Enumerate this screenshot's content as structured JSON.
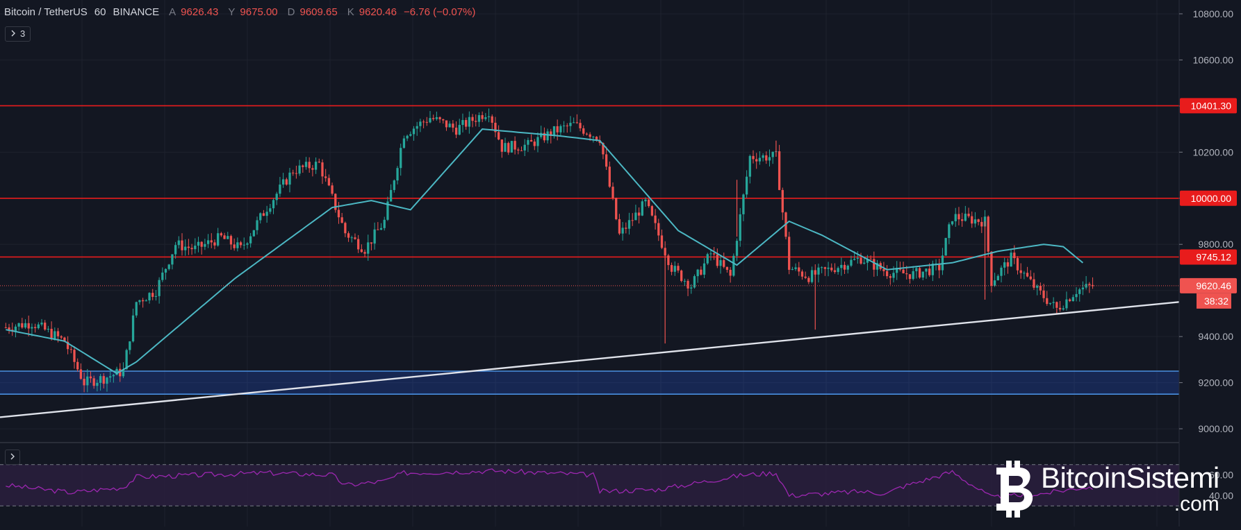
{
  "header": {
    "symbol": "Bitcoin / TetherUS",
    "interval": "60",
    "exchange": "BINANCE",
    "open_key": "A",
    "open": "9626.43",
    "high_key": "Y",
    "high": "9675.00",
    "low_key": "D",
    "low": "9609.65",
    "close_key": "K",
    "close": "9620.46",
    "change": "−6.76 (−0.07%)"
  },
  "indicator_toggle": {
    "icon": "chevron-right-icon",
    "count": "3"
  },
  "watermark": {
    "name": "BitcoinSistemi",
    "sub": ".com"
  },
  "colors": {
    "background": "#131722",
    "grid": "#1e222d",
    "up": "#26a69a",
    "down": "#ef5350",
    "ma": "#4cb8c4",
    "resistance": "#e81c1c",
    "support_zone": "#2962ff",
    "trendline": "#e0e3eb",
    "rsi": "#9c27b0",
    "rsi_band": "#2a1e3d"
  },
  "price_labels": [
    {
      "value": "10401.30",
      "color": "#e81c1c"
    },
    {
      "value": "10000.00",
      "color": "#e81c1c"
    },
    {
      "value": "9745.12",
      "color": "#e81c1c"
    },
    {
      "value": "9620.46",
      "color": "#ef5350",
      "countdown": "38:32"
    }
  ],
  "chart_data": {
    "type": "candlestick",
    "y_axis": {
      "ticks": [
        10800,
        10600,
        10400,
        10200,
        10000,
        9800,
        9600,
        9400,
        9200,
        9000
      ],
      "tick_labels": [
        "10800.00",
        "10600.00",
        "10400.00",
        "10200.00",
        "10000.00",
        "9800.00",
        "9400.00",
        "9200.00",
        "9000.00"
      ],
      "ylim": [
        8940,
        10860
      ]
    },
    "bars": 360,
    "anchors_close": [
      [
        0,
        9440
      ],
      [
        8,
        9460
      ],
      [
        18,
        9380
      ],
      [
        24,
        9200
      ],
      [
        30,
        9220
      ],
      [
        36,
        9250
      ],
      [
        40,
        9550
      ],
      [
        46,
        9600
      ],
      [
        52,
        9800
      ],
      [
        58,
        9780
      ],
      [
        66,
        9830
      ],
      [
        72,
        9780
      ],
      [
        80,
        9960
      ],
      [
        88,
        10120
      ],
      [
        96,
        10150
      ],
      [
        104,
        9850
      ],
      [
        110,
        9780
      ],
      [
        116,
        9900
      ],
      [
        122,
        10280
      ],
      [
        130,
        10350
      ],
      [
        138,
        10300
      ],
      [
        148,
        10380
      ],
      [
        152,
        10220
      ],
      [
        160,
        10230
      ],
      [
        168,
        10290
      ],
      [
        174,
        10320
      ],
      [
        182,
        10260
      ],
      [
        188,
        9840
      ],
      [
        196,
        9980
      ],
      [
        204,
        9700
      ],
      [
        210,
        9620
      ],
      [
        216,
        9760
      ],
      [
        222,
        9660
      ],
      [
        228,
        10180
      ],
      [
        236,
        10180
      ],
      [
        240,
        9700
      ],
      [
        246,
        9660
      ],
      [
        254,
        9700
      ],
      [
        262,
        9740
      ],
      [
        270,
        9680
      ],
      [
        278,
        9670
      ],
      [
        286,
        9700
      ],
      [
        290,
        9920
      ],
      [
        300,
        9900
      ],
      [
        302,
        9640
      ],
      [
        308,
        9740
      ],
      [
        316,
        9600
      ],
      [
        322,
        9520
      ],
      [
        328,
        9600
      ],
      [
        333,
        9620
      ]
    ],
    "moving_average": [
      [
        0,
        9430
      ],
      [
        18,
        9380
      ],
      [
        34,
        9240
      ],
      [
        40,
        9290
      ],
      [
        70,
        9650
      ],
      [
        100,
        9960
      ],
      [
        112,
        9990
      ],
      [
        124,
        9950
      ],
      [
        146,
        10300
      ],
      [
        170,
        10270
      ],
      [
        182,
        10250
      ],
      [
        206,
        9860
      ],
      [
        224,
        9710
      ],
      [
        240,
        9900
      ],
      [
        250,
        9840
      ],
      [
        270,
        9690
      ],
      [
        290,
        9720
      ],
      [
        304,
        9770
      ],
      [
        318,
        9800
      ],
      [
        324,
        9790
      ],
      [
        330,
        9720
      ]
    ],
    "horizontal_levels": [
      10401.3,
      10000.0,
      9745.12
    ],
    "last_price_line": 9620.46,
    "support_zone": [
      9150,
      9250
    ],
    "trendline": {
      "from": [
        0,
        9050
      ],
      "to": [
        360,
        9550
      ]
    },
    "rsi": {
      "upper_label": "60.00",
      "lower_label": "40.00",
      "levels": [
        70,
        30
      ],
      "anchors": [
        [
          0,
          50
        ],
        [
          20,
          43
        ],
        [
          36,
          48
        ],
        [
          40,
          58
        ],
        [
          80,
          62
        ],
        [
          100,
          60
        ],
        [
          104,
          50
        ],
        [
          116,
          54
        ],
        [
          122,
          62
        ],
        [
          150,
          64
        ],
        [
          180,
          60
        ],
        [
          182,
          44
        ],
        [
          200,
          46
        ],
        [
          226,
          60
        ],
        [
          236,
          62
        ],
        [
          240,
          40
        ],
        [
          262,
          44
        ],
        [
          270,
          42
        ],
        [
          274,
          48
        ],
        [
          290,
          63
        ],
        [
          302,
          38
        ],
        [
          318,
          42
        ],
        [
          330,
          48
        ]
      ]
    },
    "candles_to_price": "closes interpolated from anchors; OHLC wicks derived by script"
  }
}
